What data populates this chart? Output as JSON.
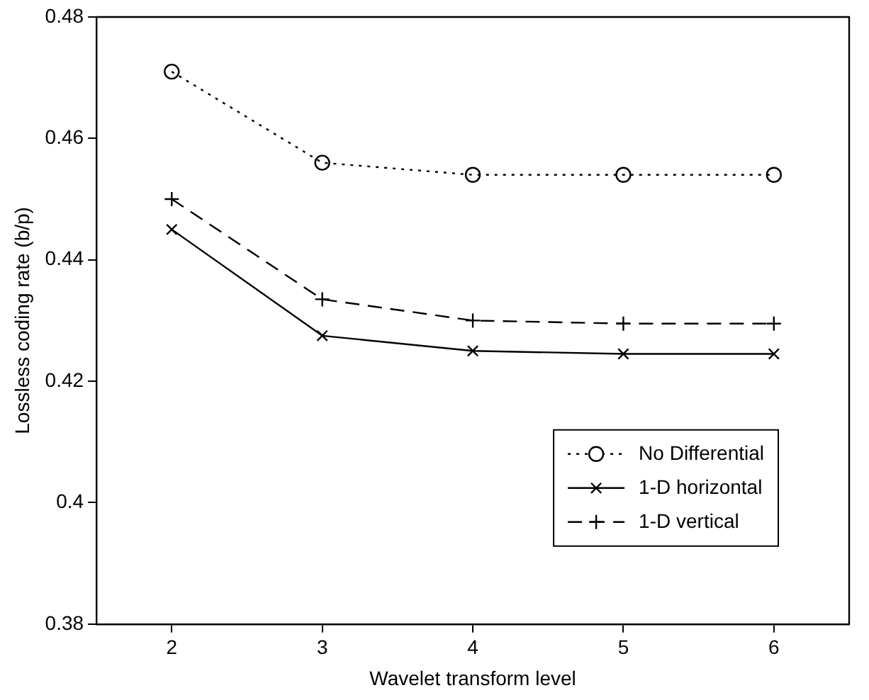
{
  "chart_data": {
    "type": "line",
    "xlabel": "Wavelet transform level",
    "ylabel": "Lossless coding rate (b/p)",
    "x": [
      2,
      3,
      4,
      5,
      6
    ],
    "series": [
      {
        "name": "No Differential",
        "color": "#000000",
        "values": [
          0.471,
          0.456,
          0.454,
          0.454,
          0.454
        ],
        "marker": "circle",
        "line_style": "dotted"
      },
      {
        "name": "1-D horizontal",
        "color": "#000000",
        "values": [
          0.445,
          0.4275,
          0.425,
          0.4245,
          0.4245
        ],
        "marker": "cross",
        "line_style": "solid"
      },
      {
        "name": "1-D vertical",
        "color": "#000000",
        "values": [
          0.45,
          0.4335,
          0.43,
          0.4295,
          0.4295
        ],
        "marker": "plus",
        "line_style": "dashed"
      }
    ],
    "xlim": [
      1.5,
      6.5
    ],
    "xticks": [
      2,
      3,
      4,
      5,
      6
    ],
    "ylim": [
      0.38,
      0.48
    ],
    "yticks": [
      0.38,
      0.4,
      0.42,
      0.44,
      0.46,
      0.48
    ],
    "grid": false,
    "legend": "bottom right"
  }
}
